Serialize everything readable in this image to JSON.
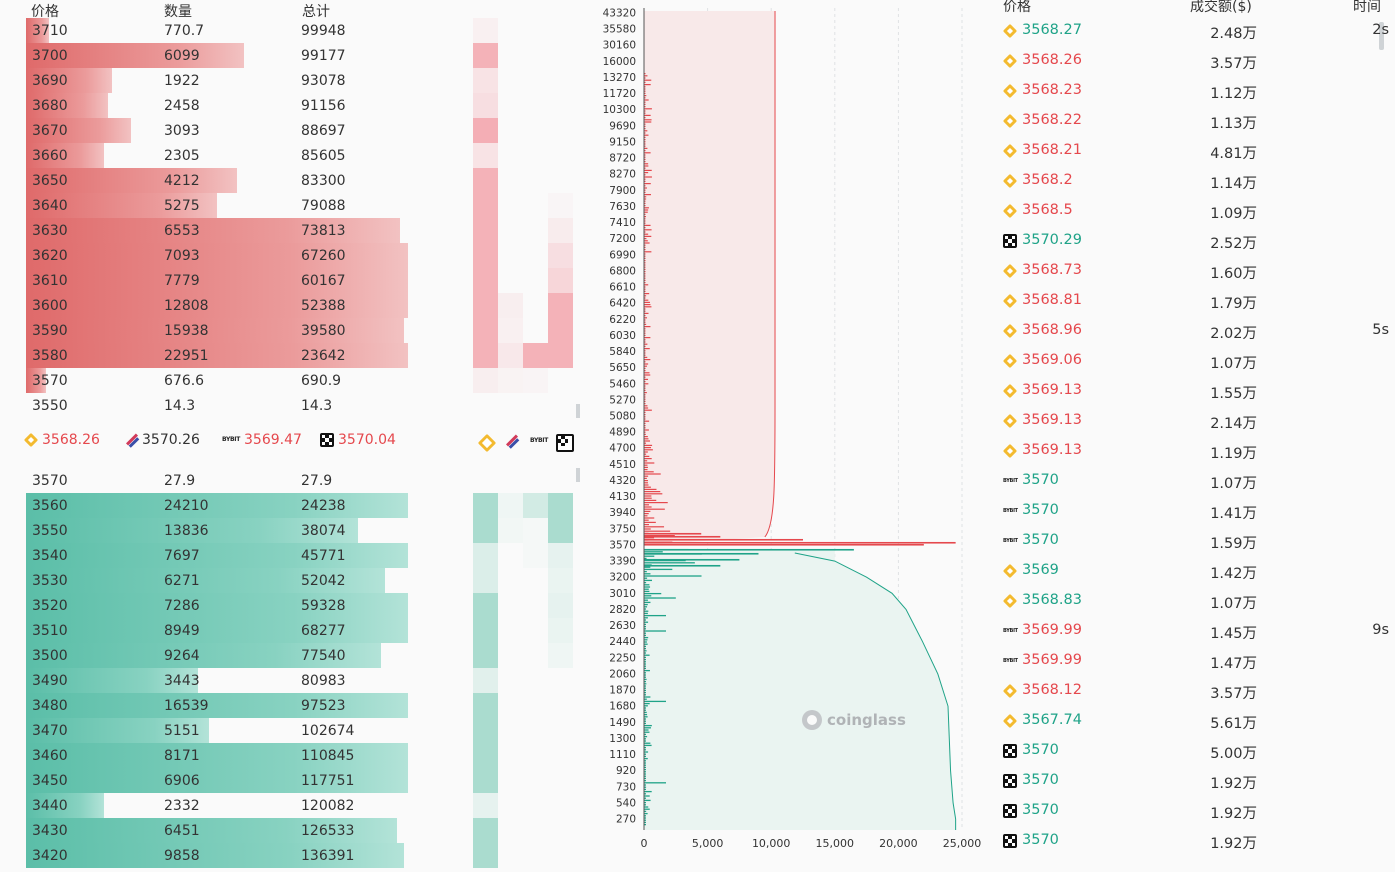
{
  "colors": {
    "ask": "#e5484d",
    "bid": "#1fa388",
    "ask_fill": "#f4c5c5",
    "bid_fill": "#a8dccf"
  },
  "orderbook": {
    "headers": {
      "price": "价格",
      "qty": "数量",
      "total": "总计"
    },
    "asks": [
      {
        "price": "3710",
        "qty": "770.7",
        "total": "99948",
        "fill": 0.06,
        "ex": [
          0.1,
          0,
          0,
          0
        ]
      },
      {
        "price": "3700",
        "qty": "6099",
        "total": "99177",
        "fill": 0.56,
        "ex": [
          0.8,
          0,
          0,
          0
        ]
      },
      {
        "price": "3690",
        "qty": "1922",
        "total": "93078",
        "fill": 0.22,
        "ex": [
          0.25,
          0,
          0,
          0
        ]
      },
      {
        "price": "3680",
        "qty": "2458",
        "total": "91156",
        "fill": 0.21,
        "ex": [
          0.3,
          0,
          0,
          0
        ]
      },
      {
        "price": "3670",
        "qty": "3093",
        "total": "88697",
        "fill": 0.27,
        "ex": [
          0.85,
          0,
          0,
          0
        ]
      },
      {
        "price": "3660",
        "qty": "2305",
        "total": "85605",
        "fill": 0.2,
        "ex": [
          0.25,
          0,
          0,
          0
        ]
      },
      {
        "price": "3650",
        "qty": "4212",
        "total": "83300",
        "fill": 0.54,
        "ex": [
          0.8,
          0,
          0,
          0
        ]
      },
      {
        "price": "3640",
        "qty": "5275",
        "total": "79088",
        "fill": 0.49,
        "ex": [
          0.8,
          0,
          0,
          0.05
        ]
      },
      {
        "price": "3630",
        "qty": "6553",
        "total": "73813",
        "fill": 0.96,
        "ex": [
          0.8,
          0,
          0,
          0.15
        ]
      },
      {
        "price": "3620",
        "qty": "7093",
        "total": "67260",
        "fill": 0.98,
        "ex": [
          0.8,
          0,
          0,
          0.3
        ]
      },
      {
        "price": "3610",
        "qty": "7779",
        "total": "60167",
        "fill": 0.98,
        "ex": [
          0.8,
          0,
          0,
          0.4
        ]
      },
      {
        "price": "3600",
        "qty": "12808",
        "total": "52388",
        "fill": 0.98,
        "ex": [
          0.8,
          0.12,
          0,
          0.8
        ]
      },
      {
        "price": "3590",
        "qty": "15938",
        "total": "39580",
        "fill": 0.97,
        "ex": [
          0.8,
          0.1,
          0,
          0.8
        ]
      },
      {
        "price": "3580",
        "qty": "22951",
        "total": "23642",
        "fill": 0.98,
        "ex": [
          0.8,
          0.2,
          0.8,
          0.8
        ]
      },
      {
        "price": "3570",
        "qty": "676.6",
        "total": "690.9",
        "fill": 0.05,
        "ex": [
          0.12,
          0.08,
          0.06,
          0
        ]
      }
    ],
    "mid": {
      "price": "3550",
      "qty": "14.3",
      "total": "14.3"
    },
    "exchange_prices": [
      {
        "icon": "binance-icon",
        "price": "3568.26",
        "color": "red"
      },
      {
        "icon": "bitget-icon",
        "price": "3570.26",
        "color": "dark"
      },
      {
        "icon": "bybit-icon",
        "price": "3569.47",
        "color": "red"
      },
      {
        "icon": "okx-icon",
        "price": "3570.04",
        "color": "red"
      }
    ],
    "bids": [
      {
        "price": "3570",
        "qty": "27.9",
        "total": "27.9",
        "fill": 0.0,
        "ex": [
          0,
          0,
          0,
          0
        ]
      },
      {
        "price": "3560",
        "qty": "24210",
        "total": "24238",
        "fill": 0.98,
        "ex": [
          0.8,
          0.1,
          0.4,
          0.8
        ]
      },
      {
        "price": "3550",
        "qty": "13836",
        "total": "38074",
        "fill": 0.85,
        "ex": [
          0.8,
          0.08,
          0.05,
          0.8
        ]
      },
      {
        "price": "3540",
        "qty": "7697",
        "total": "45771",
        "fill": 0.98,
        "ex": [
          0.3,
          0,
          0.05,
          0.2
        ]
      },
      {
        "price": "3530",
        "qty": "6271",
        "total": "52042",
        "fill": 0.92,
        "ex": [
          0.3,
          0,
          0,
          0.15
        ]
      },
      {
        "price": "3520",
        "qty": "7286",
        "total": "59328",
        "fill": 0.98,
        "ex": [
          0.8,
          0,
          0,
          0.2
        ]
      },
      {
        "price": "3510",
        "qty": "8949",
        "total": "68277",
        "fill": 0.98,
        "ex": [
          0.8,
          0,
          0,
          0.15
        ]
      },
      {
        "price": "3500",
        "qty": "9264",
        "total": "77540",
        "fill": 0.91,
        "ex": [
          0.8,
          0,
          0,
          0.1
        ]
      },
      {
        "price": "3490",
        "qty": "3443",
        "total": "80983",
        "fill": 0.44,
        "ex": [
          0.25,
          0,
          0,
          0
        ]
      },
      {
        "price": "3480",
        "qty": "16539",
        "total": "97523",
        "fill": 0.98,
        "ex": [
          0.8,
          0,
          0,
          0
        ]
      },
      {
        "price": "3470",
        "qty": "5151",
        "total": "102674",
        "fill": 0.47,
        "ex": [
          0.8,
          0,
          0,
          0
        ]
      },
      {
        "price": "3460",
        "qty": "8171",
        "total": "110845",
        "fill": 0.98,
        "ex": [
          0.8,
          0,
          0,
          0
        ]
      },
      {
        "price": "3450",
        "qty": "6906",
        "total": "117751",
        "fill": 0.98,
        "ex": [
          0.8,
          0,
          0,
          0
        ]
      },
      {
        "price": "3440",
        "qty": "2332",
        "total": "120082",
        "fill": 0.2,
        "ex": [
          0.2,
          0,
          0,
          0
        ]
      },
      {
        "price": "3430",
        "qty": "6451",
        "total": "126533",
        "fill": 0.95,
        "ex": [
          0.8,
          0,
          0,
          0
        ]
      },
      {
        "price": "3420",
        "qty": "9858",
        "total": "136391",
        "fill": 0.97,
        "ex": [
          0.8,
          0,
          0,
          0
        ]
      }
    ]
  },
  "chart_data": {
    "type": "area",
    "y_ticks": [
      "43320",
      "35580",
      "30160",
      "16000",
      "13270",
      "11720",
      "10300",
      "9690",
      "9150",
      "8720",
      "8270",
      "7900",
      "7630",
      "7410",
      "7200",
      "6990",
      "6800",
      "6610",
      "6420",
      "6220",
      "6030",
      "5840",
      "5650",
      "5460",
      "5270",
      "5080",
      "4890",
      "4700",
      "4510",
      "4320",
      "4130",
      "3940",
      "3750",
      "3570",
      "3390",
      "3200",
      "3010",
      "2820",
      "2630",
      "2440",
      "2250",
      "2060",
      "1870",
      "1680",
      "1490",
      "1300",
      "1110",
      "920",
      "730",
      "540",
      "270"
    ],
    "x_ticks": [
      "0",
      "5,000",
      "10,000",
      "15,000",
      "20,000",
      "25,000"
    ],
    "xlim": [
      0,
      25000
    ],
    "mid_price": 3570,
    "ask_cumulative": {
      "at_mid": 9500,
      "at_top": 10300
    },
    "bid_cumulative": [
      {
        "y": "3390",
        "x": 15000
      },
      {
        "y": "3200",
        "x": 17500
      },
      {
        "y": "3010",
        "x": 19500
      },
      {
        "y": "2820",
        "x": 20600
      },
      {
        "y": "2440",
        "x": 21900
      },
      {
        "y": "2060",
        "x": 23100
      },
      {
        "y": "1680",
        "x": 23900
      },
      {
        "y": "1300",
        "x": 24000
      },
      {
        "y": "920",
        "x": 24100
      },
      {
        "y": "540",
        "x": 24300
      },
      {
        "y": "270",
        "x": 24500
      }
    ],
    "watermark": "coinglass"
  },
  "trades": {
    "headers": {
      "price": "价格",
      "amount": "成交额($)",
      "time": "时间"
    },
    "rows": [
      {
        "ex": "binance-icon",
        "price": "3568.27",
        "side": "green",
        "amount": "2.48万",
        "time": "2s"
      },
      {
        "ex": "binance-icon",
        "price": "3568.26",
        "side": "red",
        "amount": "3.57万",
        "time": ""
      },
      {
        "ex": "binance-icon",
        "price": "3568.23",
        "side": "red",
        "amount": "1.12万",
        "time": ""
      },
      {
        "ex": "binance-icon",
        "price": "3568.22",
        "side": "red",
        "amount": "1.13万",
        "time": ""
      },
      {
        "ex": "binance-icon",
        "price": "3568.21",
        "side": "red",
        "amount": "4.81万",
        "time": ""
      },
      {
        "ex": "binance-icon",
        "price": "3568.2",
        "side": "red",
        "amount": "1.14万",
        "time": ""
      },
      {
        "ex": "binance-icon",
        "price": "3568.5",
        "side": "red",
        "amount": "1.09万",
        "time": ""
      },
      {
        "ex": "okx-icon",
        "price": "3570.29",
        "side": "green",
        "amount": "2.52万",
        "time": ""
      },
      {
        "ex": "binance-icon",
        "price": "3568.73",
        "side": "red",
        "amount": "1.60万",
        "time": ""
      },
      {
        "ex": "binance-icon",
        "price": "3568.81",
        "side": "red",
        "amount": "1.79万",
        "time": ""
      },
      {
        "ex": "binance-icon",
        "price": "3568.96",
        "side": "red",
        "amount": "2.02万",
        "time": "5s"
      },
      {
        "ex": "binance-icon",
        "price": "3569.06",
        "side": "red",
        "amount": "1.07万",
        "time": ""
      },
      {
        "ex": "binance-icon",
        "price": "3569.13",
        "side": "red",
        "amount": "1.55万",
        "time": ""
      },
      {
        "ex": "binance-icon",
        "price": "3569.13",
        "side": "red",
        "amount": "2.14万",
        "time": ""
      },
      {
        "ex": "binance-icon",
        "price": "3569.13",
        "side": "red",
        "amount": "1.19万",
        "time": ""
      },
      {
        "ex": "bybit-icon",
        "price": "3570",
        "side": "green",
        "amount": "1.07万",
        "time": ""
      },
      {
        "ex": "bybit-icon",
        "price": "3570",
        "side": "green",
        "amount": "1.41万",
        "time": ""
      },
      {
        "ex": "bybit-icon",
        "price": "3570",
        "side": "green",
        "amount": "1.59万",
        "time": ""
      },
      {
        "ex": "binance-icon",
        "price": "3569",
        "side": "green",
        "amount": "1.42万",
        "time": ""
      },
      {
        "ex": "binance-icon",
        "price": "3568.83",
        "side": "green",
        "amount": "1.07万",
        "time": ""
      },
      {
        "ex": "bybit-icon",
        "price": "3569.99",
        "side": "red",
        "amount": "1.45万",
        "time": "9s"
      },
      {
        "ex": "bybit-icon",
        "price": "3569.99",
        "side": "red",
        "amount": "1.47万",
        "time": ""
      },
      {
        "ex": "binance-icon",
        "price": "3568.12",
        "side": "red",
        "amount": "3.57万",
        "time": ""
      },
      {
        "ex": "binance-icon",
        "price": "3567.74",
        "side": "green",
        "amount": "5.61万",
        "time": ""
      },
      {
        "ex": "okx-icon",
        "price": "3570",
        "side": "green",
        "amount": "5.00万",
        "time": ""
      },
      {
        "ex": "okx-icon",
        "price": "3570",
        "side": "green",
        "amount": "1.92万",
        "time": ""
      },
      {
        "ex": "okx-icon",
        "price": "3570",
        "side": "green",
        "amount": "1.92万",
        "time": ""
      },
      {
        "ex": "okx-icon",
        "price": "3570",
        "side": "green",
        "amount": "1.92万",
        "time": ""
      }
    ]
  }
}
